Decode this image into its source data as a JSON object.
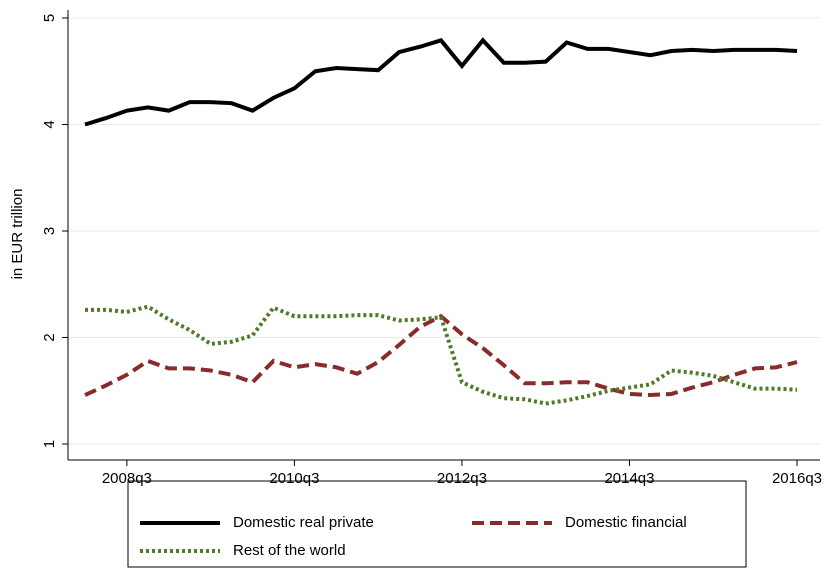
{
  "chart_data": {
    "type": "line",
    "y_label": "in EUR trillion",
    "categories": [
      null,
      null,
      "2008q3",
      null,
      null,
      null,
      null,
      null,
      null,
      null,
      "2010q3",
      null,
      null,
      null,
      null,
      null,
      null,
      null,
      "2012q3",
      null,
      null,
      null,
      null,
      null,
      null,
      null,
      "2014q3",
      null,
      null,
      null,
      null,
      null,
      null,
      null,
      "2016q3"
    ],
    "series": [
      {
        "name": "Domestic real private",
        "color": "#000000",
        "dash": "solid",
        "values": [
          4.0,
          4.06,
          4.13,
          4.16,
          4.13,
          4.21,
          4.21,
          4.2,
          4.13,
          4.25,
          4.34,
          4.5,
          4.53,
          4.52,
          4.51,
          4.68,
          4.73,
          4.79,
          4.55,
          4.79,
          4.58,
          4.58,
          4.59,
          4.77,
          4.71,
          4.71,
          4.68,
          4.65,
          4.69,
          4.7,
          4.69,
          4.7,
          4.7,
          4.7,
          4.69
        ]
      },
      {
        "name": "Domestic financial",
        "color": "#8b2a2a",
        "dash": "dashed",
        "values": [
          1.46,
          1.55,
          1.65,
          1.78,
          1.71,
          1.71,
          1.69,
          1.65,
          1.58,
          1.78,
          1.72,
          1.75,
          1.72,
          1.66,
          1.77,
          1.93,
          2.1,
          2.2,
          2.03,
          1.9,
          1.74,
          1.57,
          1.57,
          1.58,
          1.58,
          1.52,
          1.47,
          1.46,
          1.47,
          1.53,
          1.58,
          1.65,
          1.71,
          1.72,
          1.77
        ]
      },
      {
        "name": "Rest of the world",
        "color": "#4f7a28",
        "dash": "dotted",
        "values": [
          2.26,
          2.26,
          2.24,
          2.29,
          2.17,
          2.07,
          1.94,
          1.96,
          2.02,
          2.28,
          2.2,
          2.2,
          2.2,
          2.21,
          2.21,
          2.16,
          2.17,
          2.19,
          1.58,
          1.49,
          1.43,
          1.42,
          1.38,
          1.41,
          1.45,
          1.5,
          1.53,
          1.56,
          1.69,
          1.67,
          1.64,
          1.58,
          1.52,
          1.52,
          1.51
        ]
      }
    ],
    "ylim": [
      0.85,
      5.15
    ],
    "yticks": [
      1,
      2,
      3,
      4,
      5
    ],
    "grid": true
  }
}
